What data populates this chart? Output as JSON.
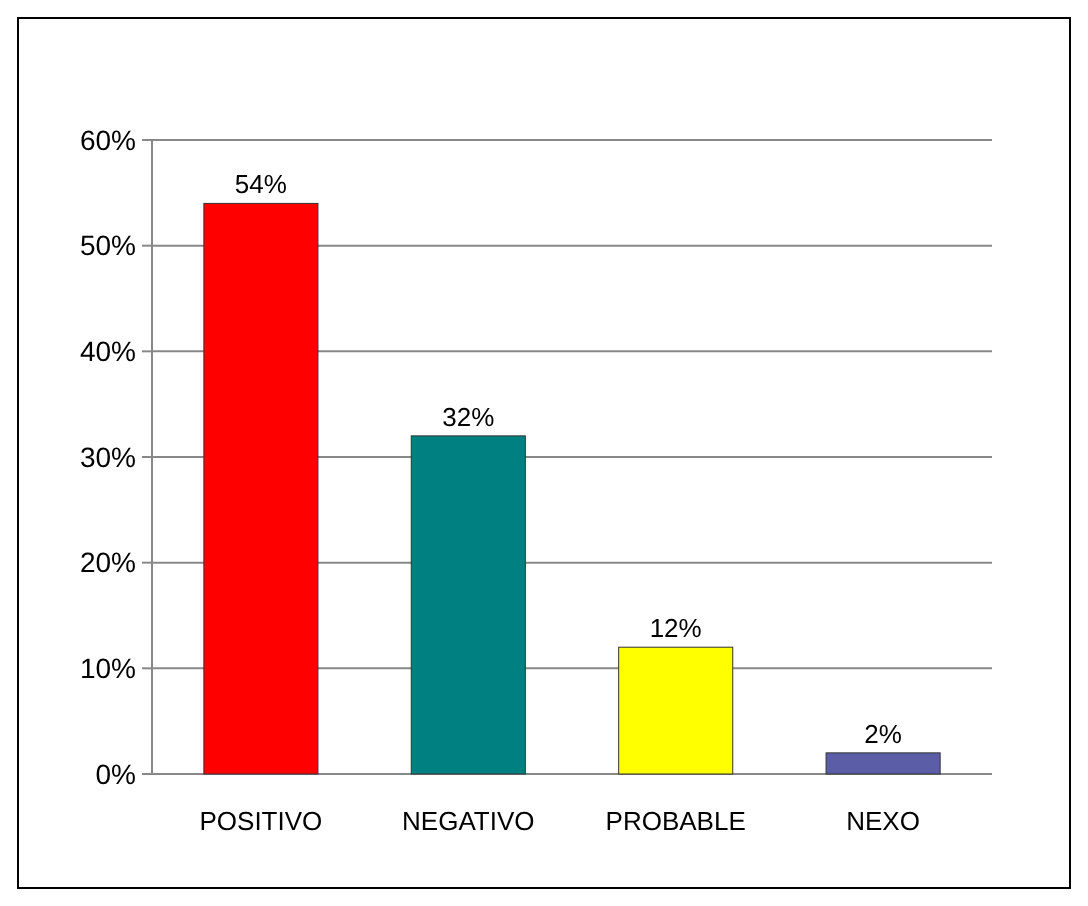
{
  "chart_data": {
    "type": "bar",
    "categories": [
      "POSITIVO",
      "NEGATIVO",
      "PROBABLE",
      "NEXO"
    ],
    "values": [
      54,
      32,
      12,
      2
    ],
    "colors": [
      "#ff0000",
      "#008080",
      "#ffff00",
      "#5b5ea6"
    ],
    "value_labels": [
      "54%",
      "32%",
      "12%",
      "2%"
    ],
    "ylim": [
      0,
      60
    ],
    "yticks": [
      {
        "value": 0,
        "label": "0%"
      },
      {
        "value": 10,
        "label": "10%"
      },
      {
        "value": 20,
        "label": "20%"
      },
      {
        "value": 30,
        "label": "30%"
      },
      {
        "value": 40,
        "label": "40%"
      },
      {
        "value": 50,
        "label": "50%"
      },
      {
        "value": 60,
        "label": "60%"
      }
    ],
    "grid": "y"
  }
}
